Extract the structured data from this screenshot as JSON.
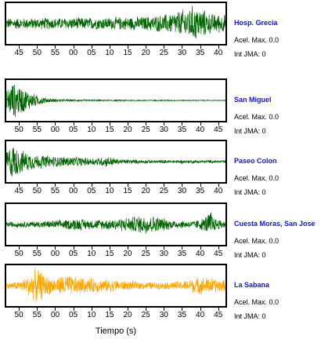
{
  "chart_data": {
    "type": "line",
    "xlabel": "Tiempo (s)",
    "panels": [
      {
        "station": "Hosp. Grecia",
        "accel_text": "Acel. Max. 0.0",
        "jma_text": "Int JMA: 0",
        "color": "#006400",
        "ticks": [
          "45",
          "50",
          "55",
          "00",
          "05",
          "10",
          "15",
          "20",
          "25",
          "30",
          "35",
          "40"
        ],
        "tick_values": [
          45,
          50,
          55,
          60,
          65,
          70,
          75,
          80,
          85,
          90,
          95,
          100
        ],
        "xlim": [
          41.5,
          102
        ],
        "envelope": [
          [
            41.5,
            0.3
          ],
          [
            55,
            0.32
          ],
          [
            70,
            0.34
          ],
          [
            80,
            0.4
          ],
          [
            85,
            0.5
          ],
          [
            88,
            0.65
          ],
          [
            91,
            0.8
          ],
          [
            93,
            1.0
          ],
          [
            95,
            0.85
          ],
          [
            98,
            0.55
          ],
          [
            102,
            0.5
          ]
        ]
      },
      {
        "station": "San Miguel",
        "accel_text": "Acel. Max. 0.0",
        "jma_text": "Int JMA: 0",
        "color": "#006400",
        "ticks": [
          "50",
          "55",
          "00",
          "05",
          "10",
          "15",
          "20",
          "25",
          "30",
          "35",
          "40",
          "45"
        ],
        "tick_values": [
          50,
          55,
          60,
          65,
          70,
          75,
          80,
          85,
          90,
          95,
          100,
          105
        ],
        "xlim": [
          46.5,
          107
        ],
        "envelope": [
          [
            46.5,
            0.55
          ],
          [
            48,
            1.0
          ],
          [
            50,
            0.85
          ],
          [
            52,
            0.6
          ],
          [
            55,
            0.3
          ],
          [
            58,
            0.12
          ],
          [
            62,
            0.06
          ],
          [
            70,
            0.04
          ],
          [
            107,
            0.02
          ]
        ]
      },
      {
        "station": "Paseo Colon",
        "accel_text": "Acel. Max. 0.0",
        "jma_text": "Int JMA: 0",
        "color": "#006400",
        "ticks": [
          "45",
          "50",
          "55",
          "00",
          "05",
          "10",
          "15",
          "20",
          "25",
          "30",
          "35",
          "40"
        ],
        "tick_values": [
          45,
          50,
          55,
          60,
          65,
          70,
          75,
          80,
          85,
          90,
          95,
          100
        ],
        "xlim": [
          41.5,
          102
        ],
        "envelope": [
          [
            41.5,
            0.6
          ],
          [
            43,
            1.0
          ],
          [
            46,
            0.6
          ],
          [
            50,
            0.4
          ],
          [
            55,
            0.3
          ],
          [
            60,
            0.28
          ],
          [
            65,
            0.2
          ],
          [
            70,
            0.3
          ],
          [
            72,
            0.15
          ],
          [
            80,
            0.1
          ],
          [
            102,
            0.08
          ]
        ]
      },
      {
        "station": "Cuesta Moras, San Jose",
        "accel_text": "Acel. Max. 0.0",
        "jma_text": "Int JMA: 0",
        "color": "#006400",
        "ticks": [
          "50",
          "55",
          "00",
          "05",
          "10",
          "15",
          "20",
          "25",
          "30",
          "35",
          "40",
          "45"
        ],
        "tick_values": [
          50,
          55,
          60,
          65,
          70,
          75,
          80,
          85,
          90,
          95,
          100,
          105
        ],
        "xlim": [
          46.5,
          107
        ],
        "envelope": [
          [
            46.5,
            0.15
          ],
          [
            55,
            0.18
          ],
          [
            62,
            0.25
          ],
          [
            66,
            0.35
          ],
          [
            70,
            0.25
          ],
          [
            75,
            0.3
          ],
          [
            80,
            0.4
          ],
          [
            85,
            0.55
          ],
          [
            88,
            0.45
          ],
          [
            92,
            0.25
          ],
          [
            98,
            0.2
          ],
          [
            101,
            0.35
          ],
          [
            103,
            0.8
          ],
          [
            104,
            0.35
          ],
          [
            107,
            0.2
          ]
        ]
      },
      {
        "station": "La Sabana",
        "accel_text": "Acel. Max. 0.0",
        "jma_text": "Int JMA: 0",
        "color": "#FFA500",
        "ticks": [
          "50",
          "55",
          "00",
          "05",
          "10",
          "15",
          "20",
          "25",
          "30",
          "35",
          "40",
          "45"
        ],
        "tick_values": [
          50,
          55,
          60,
          65,
          70,
          75,
          80,
          85,
          90,
          95,
          100,
          105
        ],
        "xlim": [
          46.5,
          107
        ],
        "envelope": [
          [
            46.5,
            0.15
          ],
          [
            50,
            0.25
          ],
          [
            53,
            0.6
          ],
          [
            55,
            1.0
          ],
          [
            57,
            0.6
          ],
          [
            60,
            0.4
          ],
          [
            63,
            0.65
          ],
          [
            66,
            0.45
          ],
          [
            70,
            0.4
          ],
          [
            75,
            0.35
          ],
          [
            80,
            0.25
          ],
          [
            85,
            0.2
          ],
          [
            90,
            0.2
          ],
          [
            95,
            0.25
          ],
          [
            100,
            0.5
          ],
          [
            103,
            0.45
          ],
          [
            107,
            0.3
          ]
        ]
      }
    ]
  }
}
